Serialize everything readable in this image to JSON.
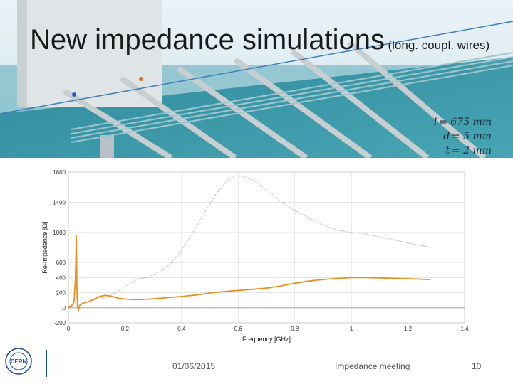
{
  "slide": {
    "title": "New impedance simulations",
    "subtitle": "(long. coupl. wires)",
    "params": [
      "l = 675 mm",
      "d = 5 mm",
      "t = 2 mm"
    ],
    "footer_date": "01/06/2015",
    "footer_meeting": "Impedance meeting",
    "page_number": "10",
    "logo_text": "CERN"
  },
  "chart_data": {
    "type": "line",
    "xlabel": "Frequency [GHz]",
    "ylabel": "Re-Impedance [Ω]",
    "xlim": [
      0,
      1.4
    ],
    "ylim": [
      -200,
      1800
    ],
    "xticks": [
      "0",
      "0.2",
      "0.4",
      "0.6",
      "0.8",
      "1",
      "1.2",
      "1.4"
    ],
    "yticks": [
      "-200",
      "0",
      "200",
      "400",
      "600",
      "1000",
      "1400",
      "1800"
    ],
    "ytick_values": [
      -200,
      0,
      200,
      400,
      600,
      1000,
      1400,
      1800
    ],
    "grid": true,
    "series": [
      {
        "color": "#b8b8b8",
        "x": [
          0,
          0.02,
          0.05,
          0.1,
          0.14,
          0.18,
          0.22,
          0.25,
          0.28,
          0.32,
          0.36,
          0.4,
          0.44,
          0.48,
          0.52,
          0.56,
          0.59,
          0.62,
          0.66,
          0.7,
          0.75,
          0.8,
          0.85,
          0.9,
          0.95,
          1.0,
          1.05,
          1.1,
          1.15,
          1.2,
          1.28
        ],
        "y": [
          0,
          20,
          60,
          110,
          150,
          230,
          330,
          390,
          400,
          470,
          580,
          760,
          1000,
          1250,
          1500,
          1680,
          1750,
          1740,
          1680,
          1560,
          1420,
          1290,
          1190,
          1100,
          1030,
          1000,
          980,
          940,
          900,
          860,
          800
        ]
      },
      {
        "color": "#e8901e",
        "x": [
          0,
          0.01,
          0.02,
          0.025,
          0.028,
          0.03,
          0.032,
          0.035,
          0.04,
          0.05,
          0.07,
          0.09,
          0.11,
          0.13,
          0.15,
          0.18,
          0.22,
          0.26,
          0.3,
          0.35,
          0.4,
          0.45,
          0.5,
          0.55,
          0.6,
          0.65,
          0.7,
          0.75,
          0.8,
          0.85,
          0.9,
          0.95,
          1.0,
          1.05,
          1.1,
          1.15,
          1.2,
          1.28
        ],
        "y": [
          0,
          20,
          80,
          400,
          970,
          300,
          20,
          -30,
          30,
          60,
          80,
          110,
          150,
          165,
          155,
          125,
          110,
          110,
          120,
          135,
          150,
          170,
          195,
          215,
          230,
          245,
          260,
          290,
          325,
          355,
          375,
          390,
          400,
          400,
          395,
          390,
          385,
          375
        ]
      }
    ]
  }
}
